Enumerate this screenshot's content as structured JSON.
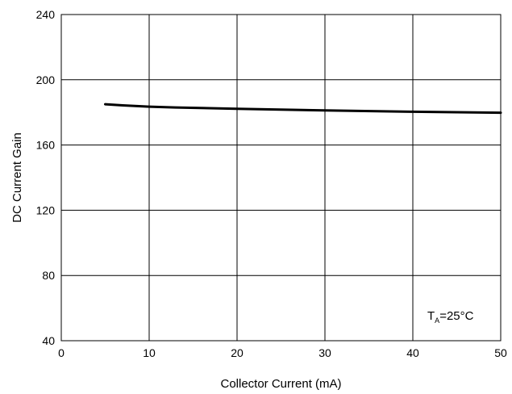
{
  "chart_data": {
    "type": "line",
    "title": "",
    "xlabel": "Collector Current (mA)",
    "ylabel": "DC Current Gain",
    "xlim": [
      0,
      50
    ],
    "ylim": [
      40,
      240
    ],
    "xticks": [
      "0",
      "10",
      "20",
      "30",
      "40",
      "50"
    ],
    "yticks": [
      "40",
      "80",
      "120",
      "160",
      "200",
      "240"
    ],
    "grid": true,
    "series": [
      {
        "x": [
          5,
          7,
          10,
          13,
          20,
          30,
          40,
          50
        ],
        "y": [
          185,
          184.3,
          183.5,
          183,
          182.2,
          181.2,
          180.4,
          179.8
        ],
        "color": "#000000"
      }
    ],
    "annotation": {
      "main": "T",
      "subscript": "A",
      "value": "=25°C"
    }
  }
}
